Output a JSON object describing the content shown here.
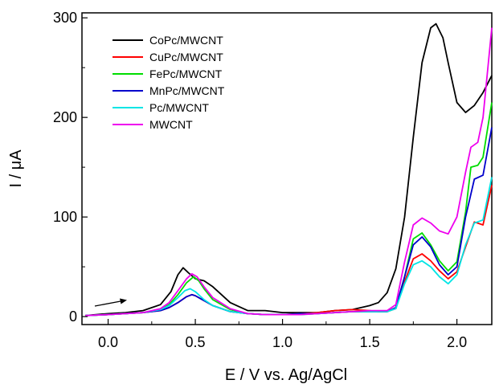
{
  "chart_data": {
    "type": "line",
    "xlabel": "E / V vs. Ag/AgCl",
    "ylabel": "I / μA",
    "xlim": [
      -0.15,
      2.2
    ],
    "ylim": [
      -8,
      305
    ],
    "x_ticks": [
      0.0,
      0.5,
      1.0,
      1.5,
      2.0
    ],
    "x_tick_labels": [
      "0.0",
      "0.5",
      "1.0",
      "1.5",
      "2.0"
    ],
    "y_ticks": [
      0,
      100,
      200,
      300
    ],
    "y_tick_labels": [
      "0",
      "100",
      "200",
      "300"
    ],
    "legend_position": "top-left",
    "annotations": [
      "scan direction arrow (positive-going) near E = -0.1 to 0.1 V"
    ],
    "series": [
      {
        "name": "CoPc/MWCNT",
        "color": "#000000",
        "x": [
          -0.13,
          0.0,
          0.1,
          0.2,
          0.3,
          0.36,
          0.4,
          0.43,
          0.46,
          0.5,
          0.55,
          0.6,
          0.7,
          0.8,
          0.9,
          1.0,
          1.1,
          1.2,
          1.3,
          1.4,
          1.5,
          1.55,
          1.6,
          1.65,
          1.7,
          1.75,
          1.8,
          1.85,
          1.88,
          1.92,
          1.95,
          2.0,
          2.05,
          2.1,
          2.15,
          2.2
        ],
        "values": [
          1,
          3,
          4,
          6,
          12,
          25,
          42,
          49,
          44,
          38,
          36,
          30,
          14,
          6,
          6,
          4,
          4,
          4,
          6,
          7,
          11,
          14,
          24,
          48,
          100,
          180,
          255,
          290,
          294,
          280,
          255,
          215,
          205,
          212,
          225,
          242
        ]
      },
      {
        "name": "CuPc/MWCNT",
        "color": "#ff0000",
        "x": [
          -0.13,
          0.0,
          0.1,
          0.2,
          0.3,
          0.35,
          0.4,
          0.45,
          0.48,
          0.5,
          0.55,
          0.6,
          0.7,
          0.8,
          0.9,
          1.0,
          1.1,
          1.2,
          1.3,
          1.4,
          1.5,
          1.55,
          1.6,
          1.65,
          1.7,
          1.75,
          1.8,
          1.85,
          1.9,
          1.95,
          2.0,
          2.05,
          2.1,
          2.15,
          2.2
        ],
        "values": [
          1,
          2,
          3,
          4,
          6,
          9,
          14,
          20,
          22,
          21,
          16,
          11,
          5,
          3,
          2,
          2,
          3,
          4,
          6,
          7,
          6,
          5,
          5,
          8,
          35,
          58,
          63,
          56,
          46,
          38,
          45,
          70,
          95,
          92,
          132
        ]
      },
      {
        "name": "FePc/MWCNT",
        "color": "#00dd00",
        "x": [
          -0.13,
          0.0,
          0.1,
          0.2,
          0.3,
          0.35,
          0.4,
          0.45,
          0.49,
          0.52,
          0.55,
          0.6,
          0.7,
          0.8,
          0.9,
          1.0,
          1.1,
          1.2,
          1.3,
          1.4,
          1.5,
          1.55,
          1.6,
          1.65,
          1.7,
          1.75,
          1.8,
          1.85,
          1.9,
          1.95,
          2.0,
          2.05,
          2.08,
          2.12,
          2.15,
          2.2
        ],
        "values": [
          1,
          2,
          3,
          4,
          7,
          12,
          22,
          34,
          40,
          36,
          28,
          17,
          7,
          3,
          2,
          2,
          2,
          3,
          4,
          5,
          5,
          5,
          5,
          9,
          40,
          78,
          84,
          72,
          56,
          46,
          55,
          105,
          150,
          152,
          160,
          215
        ]
      },
      {
        "name": "MnPc/MWCNT",
        "color": "#0000cc",
        "x": [
          -0.13,
          0.0,
          0.1,
          0.2,
          0.3,
          0.35,
          0.4,
          0.45,
          0.48,
          0.5,
          0.55,
          0.6,
          0.7,
          0.8,
          0.9,
          1.0,
          1.1,
          1.2,
          1.3,
          1.4,
          1.5,
          1.55,
          1.6,
          1.65,
          1.7,
          1.75,
          1.8,
          1.85,
          1.9,
          1.95,
          2.0,
          2.05,
          2.1,
          2.15,
          2.2
        ],
        "values": [
          1,
          2,
          3,
          4,
          6,
          9,
          14,
          20,
          22,
          21,
          16,
          11,
          5,
          3,
          2,
          2,
          3,
          3,
          4,
          5,
          5,
          5,
          5,
          9,
          40,
          72,
          80,
          70,
          52,
          42,
          50,
          100,
          138,
          142,
          190
        ]
      },
      {
        "name": "Pc/MWCNT",
        "color": "#00e5e5",
        "x": [
          -0.13,
          0.0,
          0.1,
          0.2,
          0.3,
          0.35,
          0.4,
          0.44,
          0.47,
          0.5,
          0.55,
          0.6,
          0.7,
          0.8,
          0.9,
          1.0,
          1.1,
          1.2,
          1.3,
          1.4,
          1.5,
          1.55,
          1.6,
          1.65,
          1.7,
          1.75,
          1.8,
          1.85,
          1.9,
          1.95,
          2.0,
          2.05,
          2.1,
          2.15,
          2.2
        ],
        "values": [
          1,
          2,
          3,
          4,
          7,
          11,
          19,
          26,
          28,
          25,
          17,
          11,
          5,
          3,
          2,
          2,
          2,
          3,
          4,
          5,
          5,
          5,
          5,
          8,
          33,
          52,
          56,
          50,
          40,
          33,
          42,
          72,
          94,
          97,
          140
        ]
      },
      {
        "name": "MWCNT",
        "color": "#ee00ee",
        "x": [
          -0.13,
          0.0,
          0.1,
          0.2,
          0.3,
          0.35,
          0.4,
          0.45,
          0.48,
          0.51,
          0.55,
          0.6,
          0.7,
          0.8,
          0.9,
          1.0,
          1.1,
          1.2,
          1.3,
          1.4,
          1.5,
          1.55,
          1.6,
          1.65,
          1.7,
          1.75,
          1.8,
          1.85,
          1.9,
          1.95,
          2.0,
          2.05,
          2.08,
          2.12,
          2.15,
          2.2
        ],
        "values": [
          1,
          2,
          3,
          4,
          8,
          14,
          26,
          38,
          43,
          40,
          30,
          19,
          8,
          3,
          2,
          2,
          2,
          3,
          4,
          5,
          6,
          6,
          6,
          12,
          55,
          92,
          99,
          94,
          86,
          83,
          100,
          145,
          170,
          175,
          200,
          290
        ]
      }
    ]
  }
}
